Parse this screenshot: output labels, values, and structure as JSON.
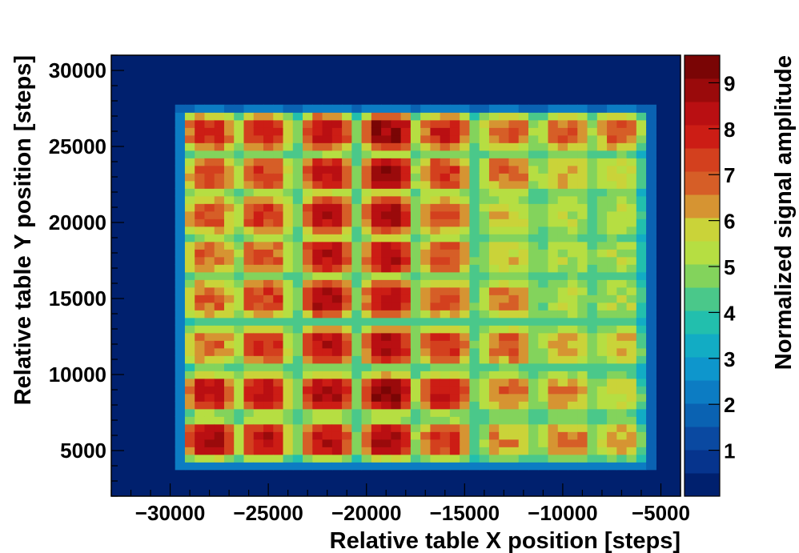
{
  "chart_data": {
    "type": "heatmap",
    "xlabel": "Relative table X position [steps]",
    "ylabel": "Relative table Y position [steps]",
    "zlabel": "Normalized signal amplitude",
    "xlim": [
      -33000,
      -4000
    ],
    "ylim": [
      2000,
      31000
    ],
    "zlim": [
      0,
      9.6
    ],
    "x_ticks": [
      -30000,
      -25000,
      -20000,
      -15000,
      -10000,
      -5000
    ],
    "x_tick_labels": [
      "−30000",
      "−25000",
      "−20000",
      "−15000",
      "−10000",
      "−5000"
    ],
    "y_ticks": [
      5000,
      10000,
      15000,
      20000,
      25000,
      30000
    ],
    "y_tick_labels": [
      "5000",
      "10000",
      "15000",
      "20000",
      "25000",
      "30000"
    ],
    "z_ticks": [
      1,
      2,
      3,
      4,
      5,
      6,
      7,
      8,
      9
    ],
    "z_tick_labels": [
      "1",
      "2",
      "3",
      "4",
      "5",
      "6",
      "7",
      "8",
      "9"
    ],
    "background_value": 0.1,
    "grid": false,
    "cell_columns_x": [
      -28000,
      -25200,
      -22000,
      -18900,
      -16000,
      -12800,
      -9800,
      -7000
    ],
    "cell_rows_y": [
      26000,
      23200,
      20500,
      17800,
      15000,
      11900,
      8800,
      5700
    ],
    "cell_peak_values": [
      [
        7.8,
        7.8,
        8.2,
        9.0,
        7.8,
        7.0,
        6.8,
        7.0
      ],
      [
        7.2,
        7.2,
        8.2,
        8.9,
        7.4,
        6.8,
        6.2,
        5.8
      ],
      [
        7.2,
        7.5,
        8.4,
        8.7,
        7.0,
        5.9,
        5.3,
        5.3
      ],
      [
        6.8,
        7.0,
        8.4,
        8.4,
        7.2,
        5.8,
        5.3,
        5.2
      ],
      [
        7.0,
        7.5,
        8.6,
        8.4,
        7.2,
        6.6,
        5.4,
        5.3
      ],
      [
        7.0,
        7.7,
        8.4,
        8.5,
        7.6,
        7.0,
        6.2,
        6.0
      ],
      [
        8.2,
        8.4,
        8.8,
        9.2,
        8.2,
        6.8,
        6.6,
        5.8
      ],
      [
        8.7,
        8.3,
        8.4,
        8.7,
        7.6,
        6.4,
        6.6,
        6.2
      ]
    ],
    "colorbar_bin_colors": [
      "#00206e",
      "#06348d",
      "#0a49a1",
      "#0a62b2",
      "#0c7cc3",
      "#0e96cc",
      "#12acc4",
      "#22bfad",
      "#4ac88a",
      "#83d35c",
      "#b6de42",
      "#cad339",
      "#d69432",
      "#d65e27",
      "#d3401e",
      "#cc1d15",
      "#b90f12",
      "#9a0a0b",
      "#7a0505"
    ]
  }
}
